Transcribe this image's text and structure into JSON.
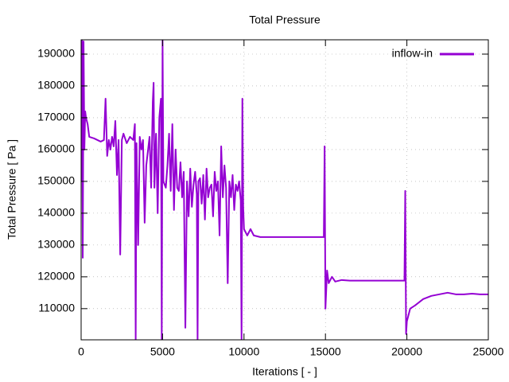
{
  "chart_data": {
    "type": "line",
    "title": "Total Pressure",
    "x_label": "Iterations [ - ]",
    "y_label": "Total Pressure [ Pa ]",
    "xlim": [
      0,
      25000
    ],
    "ylim": [
      100200,
      194500
    ],
    "xticks": [
      0,
      5000,
      10000,
      15000,
      20000,
      25000
    ],
    "yticks": [
      110000,
      120000,
      130000,
      140000,
      150000,
      160000,
      170000,
      180000,
      190000
    ],
    "grid": true,
    "legend": "upper-right",
    "x": [
      0,
      50,
      100,
      150,
      200,
      250,
      300,
      400,
      500,
      800,
      1000,
      1200,
      1400,
      1500,
      1600,
      1700,
      1800,
      1900,
      2000,
      2100,
      2200,
      2300,
      2400,
      2500,
      2600,
      2800,
      3000,
      3200,
      3300,
      3350,
      3400,
      3500,
      3600,
      3700,
      3800,
      3900,
      4000,
      4200,
      4300,
      4400,
      4450,
      4500,
      4600,
      4700,
      4800,
      4900,
      4950,
      5000,
      5050,
      5200,
      5300,
      5400,
      5500,
      5600,
      5700,
      5800,
      5900,
      6000,
      6100,
      6200,
      6300,
      6400,
      6500,
      6600,
      6700,
      6800,
      6900,
      7000,
      7100,
      7150,
      7200,
      7300,
      7400,
      7500,
      7600,
      7700,
      7800,
      7900,
      8000,
      8100,
      8200,
      8300,
      8400,
      8500,
      8600,
      8700,
      8800,
      8900,
      9000,
      9100,
      9200,
      9300,
      9400,
      9500,
      9600,
      9700,
      9800,
      9850,
      9900,
      9950,
      10000,
      10200,
      10400,
      10600,
      11000,
      12000,
      13000,
      14000,
      14900,
      14950,
      15000,
      15100,
      15200,
      15400,
      15600,
      16000,
      16500,
      17000,
      18000,
      19000,
      19850,
      19900,
      19950,
      20000,
      20200,
      20500,
      21000,
      21500,
      22000,
      22500,
      23000,
      23500,
      24000,
      24500,
      25000
    ],
    "series": [
      {
        "name": "inflow-in",
        "color": "#9400d3",
        "values": [
          150000,
          194500,
          126000,
          194000,
          160000,
          172000,
          170000,
          168000,
          164000,
          163500,
          163000,
          162500,
          163000,
          176000,
          158000,
          163000,
          160000,
          164000,
          161000,
          169000,
          152000,
          163000,
          127000,
          163000,
          165000,
          162000,
          164000,
          163000,
          168000,
          100300,
          162000,
          130000,
          164000,
          160000,
          163000,
          137000,
          155000,
          164000,
          148000,
          175000,
          181000,
          148000,
          165000,
          140000,
          170000,
          176000,
          100300,
          194500,
          150000,
          148000,
          155000,
          165000,
          147000,
          168000,
          141000,
          160000,
          148000,
          147000,
          156000,
          145000,
          153000,
          104000,
          150000,
          139000,
          154000,
          142000,
          149000,
          153000,
          146000,
          100300,
          150000,
          151000,
          143000,
          152000,
          138000,
          154000,
          145000,
          148000,
          149000,
          139000,
          153000,
          147000,
          150000,
          133000,
          161000,
          145000,
          155000,
          148000,
          118000,
          150000,
          145000,
          152000,
          141000,
          149000,
          147000,
          150000,
          144000,
          100300,
          176000,
          142000,
          135000,
          133000,
          135000,
          133000,
          132500,
          132500,
          132500,
          132500,
          132500,
          161000,
          110000,
          122000,
          118000,
          120000,
          118500,
          119000,
          118800,
          118800,
          118800,
          118800,
          118800,
          147000,
          102000,
          106000,
          110000,
          111000,
          113000,
          114000,
          114500,
          115000,
          114500,
          114500,
          114700,
          114500,
          114500
        ]
      }
    ]
  }
}
